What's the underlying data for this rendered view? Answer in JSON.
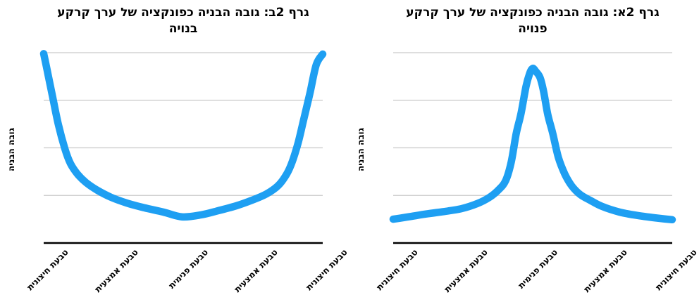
{
  "page": {
    "background": "#FFFFFF",
    "text_color": "#000000"
  },
  "chart_data": [
    {
      "type": "line",
      "id": "graph-2b",
      "title": "גרף 2ב: גובה הבניה כפונקציה של ערך קרקע בנויה",
      "title_line1": "גרף 2ב: גובה הבניה כפונקציה של ערך קרקע",
      "title_line2": "בנויה",
      "ylabel": "גובה הבניה",
      "xlabel": "",
      "categories": [
        "טבעת חיצונית",
        "טבעת אמצעית",
        "טבעת פנימית",
        "טבעת אמצעית",
        "טבעת חיצונית"
      ],
      "category_values": [
        3.98,
        0.95,
        0.55,
        0.9,
        3.97
      ],
      "ylim": [
        0,
        4
      ],
      "y_tick_labels_visible": false,
      "gridline_units": [
        1,
        2,
        3,
        4
      ],
      "legend_position": "none",
      "line_color": "#1E9FF2",
      "gridline_color": "#C9C9C9",
      "axis_color": "#000000",
      "curve_points": {
        "x_pct": [
          0,
          1.5,
          3.3,
          5.3,
          7.6,
          9.6,
          12.1,
          15.2,
          19.2,
          24.2,
          29.8,
          36.1,
          42.9,
          49.5,
          56.3,
          62.6,
          68.9,
          74.7,
          79.8,
          84.1,
          87.1,
          89.1,
          91.2,
          93.2,
          95.5,
          97.7,
          100
        ],
        "y": [
          3.98,
          3.56,
          3.04,
          2.48,
          1.98,
          1.67,
          1.45,
          1.27,
          1.11,
          0.96,
          0.84,
          0.74,
          0.65,
          0.55,
          0.59,
          0.68,
          0.78,
          0.9,
          1.03,
          1.21,
          1.45,
          1.71,
          2.11,
          2.6,
          3.17,
          3.75,
          3.97
        ]
      }
    },
    {
      "type": "line",
      "id": "graph-2a",
      "title": "גרף 2א: גובה הבניה כפונקציה של ערך קרקע פנויה",
      "title_line1": "גרף 2א: גובה הבניה כפונקציה של ערך קרקע",
      "title_line2": "פנויה",
      "ylabel": "גובה הבניה",
      "xlabel": "",
      "categories": [
        "טבעת חיצונית",
        "טבעת אמצעית",
        "טבעת פנימית",
        "טבעת אמצעית",
        "טבעת חיצונית"
      ],
      "category_values": [
        0.5,
        0.72,
        3.67,
        0.76,
        0.49
      ],
      "ylim": [
        0,
        4
      ],
      "y_tick_labels_visible": false,
      "gridline_units": [
        1,
        2,
        3,
        4
      ],
      "legend_position": "none",
      "line_color": "#1E9FF2",
      "gridline_color": "#C9C9C9",
      "axis_color": "#000000",
      "curve_points": {
        "x_pct": [
          0,
          5.5,
          11.8,
          18.1,
          24.4,
          30.2,
          34.5,
          37.8,
          40.3,
          42.3,
          44.1,
          45.8,
          47.6,
          48.9,
          50,
          51.2,
          52.6,
          53.9,
          55.4,
          57.2,
          59.2,
          61.5,
          64,
          67,
          70.5,
          74.8,
          81.1,
          87.4,
          93.7,
          100
        ],
        "y": [
          0.5,
          0.55,
          0.61,
          0.66,
          0.72,
          0.83,
          0.96,
          1.12,
          1.31,
          1.7,
          2.3,
          2.72,
          3.29,
          3.56,
          3.67,
          3.6,
          3.48,
          3.19,
          2.7,
          2.3,
          1.8,
          1.45,
          1.2,
          1.02,
          0.9,
          0.77,
          0.65,
          0.58,
          0.53,
          0.49
        ]
      }
    }
  ]
}
